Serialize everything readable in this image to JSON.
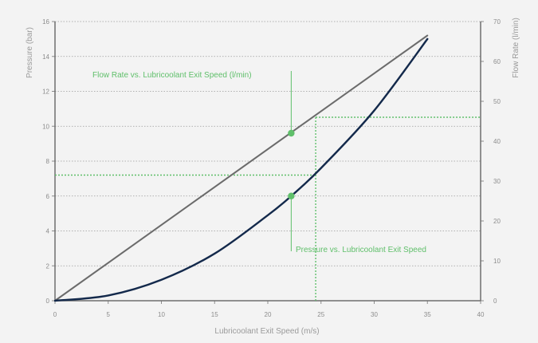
{
  "chart_data": {
    "type": "line",
    "xlabel": "Lubricoolant Exit Speed (m/s)",
    "ylabel_left": "Pressure (bar)",
    "ylabel_right": "Flow Rate (l/min)",
    "xlim": [
      0,
      40
    ],
    "ylim_left": [
      0,
      16
    ],
    "ylim_right": [
      0,
      70
    ],
    "x_ticks": [
      "0",
      "5",
      "10",
      "15",
      "20",
      "25",
      "30",
      "35",
      "40"
    ],
    "y_left_ticks": [
      "0",
      "2",
      "4",
      "6",
      "8",
      "10",
      "12",
      "14",
      "16"
    ],
    "y_right_ticks": [
      "0",
      "10",
      "20",
      "30",
      "40",
      "50",
      "60",
      "70"
    ],
    "grid": "horizontal dotted",
    "series": [
      {
        "name": "Flow Rate vs. Lubricoolant Exit Speed (l/min)",
        "axis": "right",
        "color": "#6b6b6b",
        "x": [
          0,
          35
        ],
        "y": [
          0,
          66.5
        ]
      },
      {
        "name": "Pressure vs. Lubricoolant Exit Speed",
        "axis": "left",
        "color": "#13294b",
        "x": [
          0,
          5,
          10,
          15,
          20,
          22.2,
          25,
          30,
          35
        ],
        "y": [
          0,
          0.3,
          1.2,
          2.7,
          4.9,
          6.0,
          7.6,
          10.9,
          15.0
        ]
      }
    ],
    "markers": [
      {
        "series": "Flow Rate vs. Lubricoolant Exit Speed (l/min)",
        "x": 22.2,
        "y": 42
      },
      {
        "series": "Pressure vs. Lubricoolant Exit Speed",
        "x": 22.2,
        "y": 6.0
      }
    ],
    "reference_lines": [
      {
        "axis": "left",
        "y": 7.2,
        "color": "#5fbf6a"
      },
      {
        "axis": "right",
        "y": 46,
        "color": "#5fbf6a"
      },
      {
        "x": 24.5,
        "color": "#5fbf6a"
      }
    ],
    "annotations": [
      {
        "text": "Flow Rate vs. Lubricoolant Exit Speed (l/min)"
      },
      {
        "text": "Pressure vs. Lubricoolant Exit Speed"
      }
    ],
    "accent_color": "#5fbf6a"
  }
}
